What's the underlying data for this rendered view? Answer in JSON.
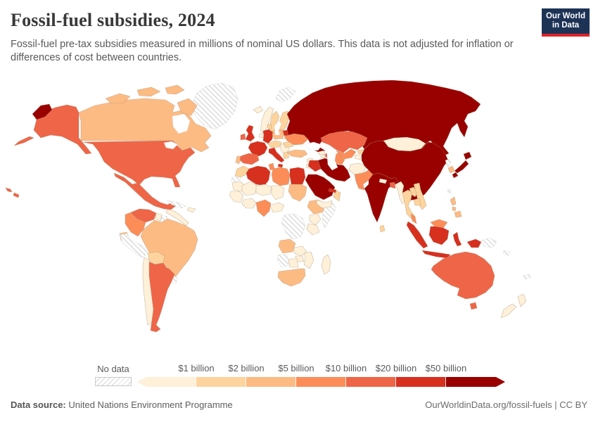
{
  "header": {
    "title": "Fossil-fuel subsidies, 2024",
    "subtitle": "Fossil-fuel pre-tax subsidies measured in millions of nominal US dollars. This data is not adjusted for inflation or differences of cost between countries.",
    "logo_line1": "Our World",
    "logo_line2": "in Data"
  },
  "footer": {
    "source_label": "Data source:",
    "source_text": " United Nations Environment Programme",
    "credit": "OurWorldinData.org/fossil-fuels | CC BY"
  },
  "legend": {
    "no_data_label": "No data",
    "tick_labels": [
      "$1 billion",
      "$2 billion",
      "$5 billion",
      "$10 billion",
      "$20 billion",
      "$50 billion"
    ]
  },
  "chart_data": {
    "type": "choropleth_map",
    "title": "Fossil-fuel subsidies, 2024",
    "year": 2024,
    "unit": "millions of nominal US dollars",
    "bin_labels": [
      "< $1 billion",
      "$1–2 billion",
      "$2–5 billion",
      "$5–10 billion",
      "$10–20 billion",
      "$20–50 billion",
      "> $50 billion"
    ],
    "bin_colors": [
      "#fef0d9",
      "#fdd49e",
      "#fdbb84",
      "#fc8d59",
      "#ef6548",
      "#d7301f",
      "#990000"
    ],
    "no_data_color": "hatched-white-grey",
    "countries": {
      "Russia": 6,
      "China": 6,
      "India": 6,
      "Japan": 6,
      "Iran": 6,
      "Saudi Arabia": 6,
      "United Kingdom": 5,
      "France": 5,
      "Germany": 5,
      "Italy": 5,
      "Belarus": 5,
      "Algeria": 5,
      "Egypt": 5,
      "Iraq": 5,
      "United Arab Emirates": 5,
      "Indonesia": 5,
      "United States": 4,
      "Mexico": 4,
      "Venezuela": 4,
      "Argentina": 4,
      "Spain": 4,
      "Ireland": 4,
      "Kazakhstan": 4,
      "Azerbaijan": 4,
      "Bangladesh": 4,
      "Australia": 4,
      "Colombia": 3,
      "Ukraine": 3,
      "Tunisia": 3,
      "Libya": 3,
      "Nigeria": 3,
      "Pakistan": 3,
      "Turkmenistan": 3,
      "Uzbekistan": 3,
      "Malaysia": 3,
      "Canada": 2,
      "Brazil": 2,
      "Ecuador": 2,
      "Portugal": 2,
      "Poland": 2,
      "Turkey": 2,
      "Sudan": 2,
      "Ethiopia": 2,
      "Angola": 2,
      "South Africa": 2,
      "South Korea": 2,
      "Philippines": 2,
      "Sweden": 1,
      "Finland": 1,
      "Denmark": 1,
      "Central Europe": 1,
      "Romania": 1,
      "Greece": 1,
      "Morocco": 1,
      "Bolivia": 1,
      "Oman": 1,
      "Kyrgyzstan": 1,
      "Thailand": 1,
      "Laos": 1,
      "Vietnam": 1,
      "Cambodia": 1,
      "Sri Lanka": 1,
      "Norway": 0,
      "Iceland": 0,
      "Baltic States": 0,
      "Netherlands": 0,
      "Balkans": 0,
      "Chile": 0,
      "Paraguay": 0,
      "Guyana": 0,
      "Dominican Republic": 0,
      "Central America": 0,
      "Mauritania": 0,
      "Mali": 0,
      "Niger": 0,
      "Chad": 0,
      "Senegal & Guinea": 0,
      "Ivory Coast & Ghana": 0,
      "Cameroon & Central Africa": 0,
      "Kenya": 0,
      "Tanzania": 0,
      "Zambia": 0,
      "Zimbabwe": 0,
      "Mozambique": 0,
      "Botswana": 0,
      "Madagascar": 0,
      "Yemen": 0,
      "Syria": 0,
      "Jordan": 0,
      "Georgia": 0,
      "Armenia": 0,
      "Afghanistan": 0,
      "Mongolia": 0,
      "Nepal": 0,
      "Myanmar": 0,
      "Tajikistan": 0,
      "New Zealand": 0,
      "Greenland": "nodata",
      "Svalbard": "nodata",
      "Cuba": "nodata",
      "Peru": "nodata",
      "Suriname": "nodata",
      "Uruguay": "nodata",
      "Western Sahara": "nodata",
      "DR Congo": "nodata",
      "Somalia": "nodata",
      "Namibia": "nodata",
      "North Korea": "nodata",
      "Taiwan": "nodata",
      "Papua New Guinea": "nodata",
      "Pacific Islands": "nodata"
    }
  }
}
